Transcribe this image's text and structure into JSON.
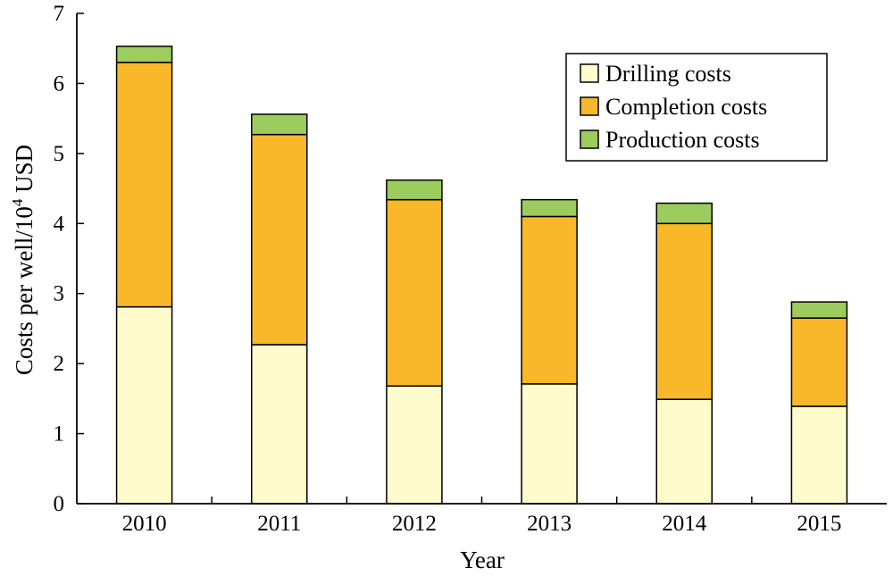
{
  "chart_data": {
    "type": "bar",
    "stacked": true,
    "categories": [
      "2010",
      "2011",
      "2012",
      "2013",
      "2014",
      "2015"
    ],
    "series": [
      {
        "name": "Drilling costs",
        "color": "#fefccc",
        "values": [
          2.81,
          2.27,
          1.68,
          1.71,
          1.49,
          1.39
        ]
      },
      {
        "name": "Completion costs",
        "color": "#f8b82a",
        "values": [
          3.49,
          3.0,
          2.66,
          2.39,
          2.51,
          1.26
        ]
      },
      {
        "name": "Production costs",
        "color": "#9ccb5e",
        "values": [
          0.23,
          0.29,
          0.28,
          0.24,
          0.29,
          0.23
        ]
      }
    ],
    "xlabel": "Year",
    "ylabel_parts": {
      "main": "Costs per well/10",
      "sup": "4",
      "unit": " USD"
    },
    "ylim": [
      0,
      7
    ],
    "yticks": [
      "0",
      "1",
      "2",
      "3",
      "4",
      "5",
      "6",
      "7"
    ],
    "grid": false,
    "legend_position": "top-right"
  }
}
